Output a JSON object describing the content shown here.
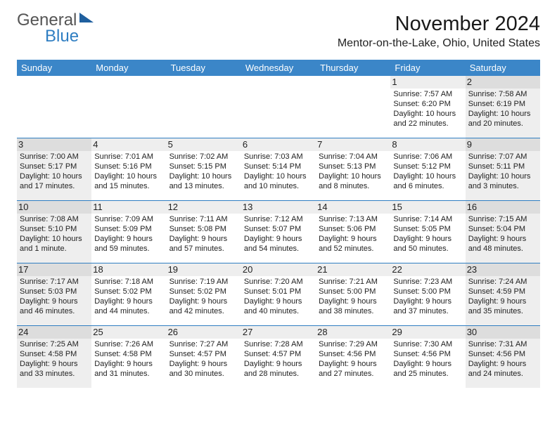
{
  "logo": {
    "top": "General",
    "bottom": "Blue"
  },
  "title": "November 2024",
  "subtitle": "Mentor-on-the-Lake, Ohio, United States",
  "days": [
    "Sunday",
    "Monday",
    "Tuesday",
    "Wednesday",
    "Thursday",
    "Friday",
    "Saturday"
  ],
  "colors": {
    "header_bg": "#3b86c8",
    "accent": "#2f7ec2",
    "shade": "#eeeeee",
    "daynum_shade": "#dddddd",
    "text": "#222222"
  },
  "grid": [
    [
      null,
      null,
      null,
      null,
      null,
      {
        "n": "1",
        "sr": "7:57 AM",
        "ss": "6:20 PM",
        "dl": "10 hours and 22 minutes."
      },
      {
        "n": "2",
        "sr": "7:58 AM",
        "ss": "6:19 PM",
        "dl": "10 hours and 20 minutes.",
        "shade": true
      }
    ],
    [
      {
        "n": "3",
        "sr": "7:00 AM",
        "ss": "5:17 PM",
        "dl": "10 hours and 17 minutes.",
        "shade": true
      },
      {
        "n": "4",
        "sr": "7:01 AM",
        "ss": "5:16 PM",
        "dl": "10 hours and 15 minutes."
      },
      {
        "n": "5",
        "sr": "7:02 AM",
        "ss": "5:15 PM",
        "dl": "10 hours and 13 minutes."
      },
      {
        "n": "6",
        "sr": "7:03 AM",
        "ss": "5:14 PM",
        "dl": "10 hours and 10 minutes."
      },
      {
        "n": "7",
        "sr": "7:04 AM",
        "ss": "5:13 PM",
        "dl": "10 hours and 8 minutes."
      },
      {
        "n": "8",
        "sr": "7:06 AM",
        "ss": "5:12 PM",
        "dl": "10 hours and 6 minutes."
      },
      {
        "n": "9",
        "sr": "7:07 AM",
        "ss": "5:11 PM",
        "dl": "10 hours and 3 minutes.",
        "shade": true
      }
    ],
    [
      {
        "n": "10",
        "sr": "7:08 AM",
        "ss": "5:10 PM",
        "dl": "10 hours and 1 minute.",
        "shade": true
      },
      {
        "n": "11",
        "sr": "7:09 AM",
        "ss": "5:09 PM",
        "dl": "9 hours and 59 minutes."
      },
      {
        "n": "12",
        "sr": "7:11 AM",
        "ss": "5:08 PM",
        "dl": "9 hours and 57 minutes."
      },
      {
        "n": "13",
        "sr": "7:12 AM",
        "ss": "5:07 PM",
        "dl": "9 hours and 54 minutes."
      },
      {
        "n": "14",
        "sr": "7:13 AM",
        "ss": "5:06 PM",
        "dl": "9 hours and 52 minutes."
      },
      {
        "n": "15",
        "sr": "7:14 AM",
        "ss": "5:05 PM",
        "dl": "9 hours and 50 minutes."
      },
      {
        "n": "16",
        "sr": "7:15 AM",
        "ss": "5:04 PM",
        "dl": "9 hours and 48 minutes.",
        "shade": true
      }
    ],
    [
      {
        "n": "17",
        "sr": "7:17 AM",
        "ss": "5:03 PM",
        "dl": "9 hours and 46 minutes.",
        "shade": true
      },
      {
        "n": "18",
        "sr": "7:18 AM",
        "ss": "5:02 PM",
        "dl": "9 hours and 44 minutes."
      },
      {
        "n": "19",
        "sr": "7:19 AM",
        "ss": "5:02 PM",
        "dl": "9 hours and 42 minutes."
      },
      {
        "n": "20",
        "sr": "7:20 AM",
        "ss": "5:01 PM",
        "dl": "9 hours and 40 minutes."
      },
      {
        "n": "21",
        "sr": "7:21 AM",
        "ss": "5:00 PM",
        "dl": "9 hours and 38 minutes."
      },
      {
        "n": "22",
        "sr": "7:23 AM",
        "ss": "5:00 PM",
        "dl": "9 hours and 37 minutes."
      },
      {
        "n": "23",
        "sr": "7:24 AM",
        "ss": "4:59 PM",
        "dl": "9 hours and 35 minutes.",
        "shade": true
      }
    ],
    [
      {
        "n": "24",
        "sr": "7:25 AM",
        "ss": "4:58 PM",
        "dl": "9 hours and 33 minutes.",
        "shade": true
      },
      {
        "n": "25",
        "sr": "7:26 AM",
        "ss": "4:58 PM",
        "dl": "9 hours and 31 minutes."
      },
      {
        "n": "26",
        "sr": "7:27 AM",
        "ss": "4:57 PM",
        "dl": "9 hours and 30 minutes."
      },
      {
        "n": "27",
        "sr": "7:28 AM",
        "ss": "4:57 PM",
        "dl": "9 hours and 28 minutes."
      },
      {
        "n": "28",
        "sr": "7:29 AM",
        "ss": "4:56 PM",
        "dl": "9 hours and 27 minutes."
      },
      {
        "n": "29",
        "sr": "7:30 AM",
        "ss": "4:56 PM",
        "dl": "9 hours and 25 minutes."
      },
      {
        "n": "30",
        "sr": "7:31 AM",
        "ss": "4:56 PM",
        "dl": "9 hours and 24 minutes.",
        "shade": true
      }
    ]
  ],
  "labels": {
    "sunrise": "Sunrise:",
    "sunset": "Sunset:",
    "daylight": "Daylight:"
  }
}
